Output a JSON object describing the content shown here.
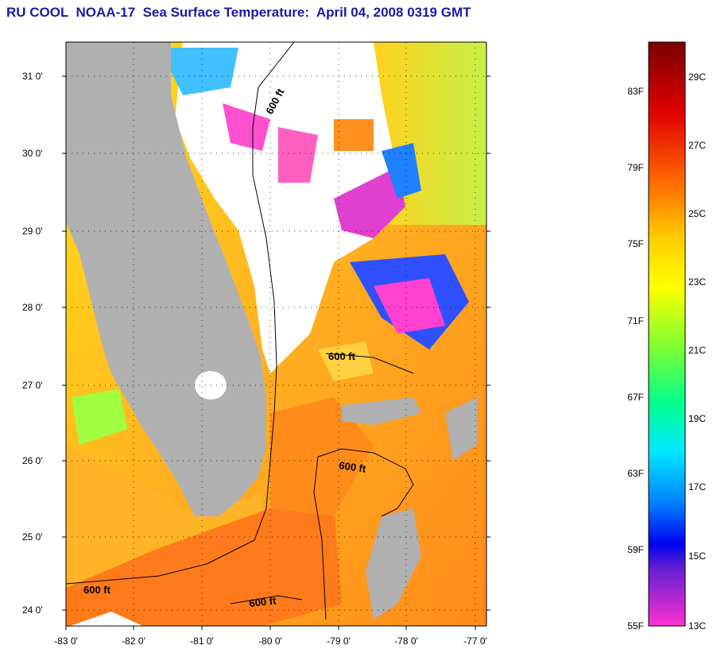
{
  "title": "RU COOL  NOAA-17  Sea Surface Temperature:  April 04, 2008 0319 GMT",
  "map": {
    "lat_ticks": [
      "31 0'",
      "30 0'",
      "29 0'",
      "28 0'",
      "27 0'",
      "26 0'",
      "25 0'",
      "24 0'"
    ],
    "lon_ticks": [
      "-83 0'",
      "-82 0'",
      "-81 0'",
      "-80 0'",
      "-79 0'",
      "-78 0'",
      "-77 0'"
    ],
    "contour_label": "600 ft",
    "contour_labels": [
      "600 ft",
      "600 ft",
      "600 ft",
      "600 ft",
      "600 ft"
    ]
  },
  "colorbar": {
    "fahrenheit_labels": [
      "83F",
      "79F",
      "75F",
      "71F",
      "67F",
      "63F",
      "59F",
      "55F"
    ],
    "celsius_labels": [
      "29C",
      "27C",
      "25C",
      "23C",
      "21C",
      "19C",
      "17C",
      "15C",
      "13C"
    ]
  },
  "colors": {
    "title": "#1a1aa6",
    "land": "#b0b0b0",
    "cloud": "#ffffff",
    "sst_warm": "#ff8c1a",
    "sst_mild": "#ffd21e"
  }
}
